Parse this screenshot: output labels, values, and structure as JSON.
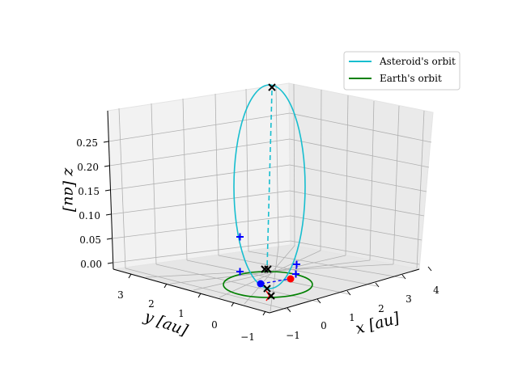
{
  "chart_data": {
    "type": "line",
    "projection": "3d",
    "xlabel": "x [au]",
    "ylabel": "y [au]",
    "zlabel": "z [au]",
    "x_ticks": [
      "−1",
      "0",
      "1",
      "2",
      "3",
      "4"
    ],
    "y_ticks": [
      "−1",
      "0",
      "1",
      "2",
      "3"
    ],
    "z_ticks": [
      "0.00",
      "0.05",
      "0.10",
      "0.15",
      "0.20",
      "0.25"
    ],
    "grid": true,
    "legend_position": "top-right",
    "series": [
      {
        "name": "Asteroid's orbit",
        "color": "#17becf",
        "style": "solid"
      },
      {
        "name": "Earth's orbit",
        "color": "#008000",
        "style": "solid"
      }
    ],
    "markers": {
      "asteroid_position_color": "#0000ff",
      "earth_position_color": "#ff0000",
      "x_marker_color": "#000000",
      "plus_marker_color": "#0000ff"
    }
  }
}
